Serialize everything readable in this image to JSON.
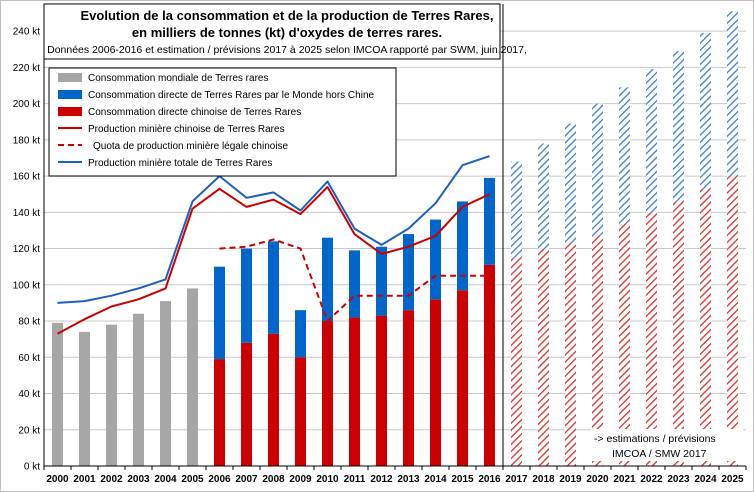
{
  "chart_data": {
    "type": "bar",
    "title_lines": [
      "Evolution de la consommation et de la production de Terres Rares,",
      "en milliers de tonnes (kt) d'oxydes de terres rares."
    ],
    "subtitle": "Données 2006-2016 et estimation / prévisions 2017 à 2025 selon IMCOA rapporté par SWM, juin 2017,",
    "ylim": [
      0,
      250
    ],
    "y_ticks": [
      "0 kt",
      "20 kt",
      "40 kt",
      "60 kt",
      "80 kt",
      "100 kt",
      "120 kt",
      "140 kt",
      "160 kt",
      "180 kt",
      "200 kt",
      "220 kt",
      "240 kt"
    ],
    "categories": [
      "2000",
      "2001",
      "2002",
      "2003",
      "2004",
      "2005",
      "2006",
      "2007",
      "2008",
      "2009",
      "2010",
      "2011",
      "2012",
      "2013",
      "2014",
      "2015",
      "2016",
      "2017",
      "2018",
      "2019",
      "2020",
      "2021",
      "2022",
      "2023",
      "2024",
      "2025"
    ],
    "forecast_from": "2017",
    "grid": true,
    "legend_position": "top-left",
    "series": [
      {
        "name": "Consommation mondiale de Terres rares",
        "kind": "bar",
        "color": "#a6a6a6",
        "values": [
          79,
          74,
          78,
          84,
          91,
          98,
          null,
          null,
          null,
          null,
          null,
          null,
          null,
          null,
          null,
          null,
          null,
          null,
          null,
          null,
          null,
          null,
          null,
          null,
          null,
          null
        ]
      },
      {
        "name": "Consommation directe chinoise de Terres Rares",
        "kind": "bar-stack-bottom",
        "color": "#cc0000",
        "values": [
          null,
          null,
          null,
          null,
          null,
          null,
          59,
          68,
          73,
          60,
          80,
          82,
          83,
          86,
          92,
          97,
          111,
          115,
          120,
          123,
          127,
          134,
          140,
          146,
          153,
          160
        ]
      },
      {
        "name": "Consommation directe de Terres Rares par le Monde hors Chine",
        "kind": "bar-stack-top",
        "color": "#0066cc",
        "values": [
          null,
          null,
          null,
          null,
          null,
          null,
          51,
          52,
          51,
          26,
          46,
          37,
          38,
          42,
          44,
          49,
          48,
          53,
          58,
          66,
          73,
          75,
          79,
          83,
          86,
          91
        ]
      },
      {
        "name": "Production minière chinoise de Terres Rares",
        "kind": "line",
        "color": "#cc0000",
        "values": [
          73,
          81,
          88,
          92,
          98,
          142,
          153,
          143,
          147,
          139,
          154,
          128,
          117,
          121,
          127,
          143,
          150,
          null,
          null,
          null,
          null,
          null,
          null,
          null,
          null,
          null
        ]
      },
      {
        "name": "Quota de production minière légale chinoise",
        "kind": "dashed-line",
        "color": "#cc0000",
        "values": [
          null,
          null,
          null,
          null,
          null,
          null,
          120,
          121,
          125,
          120,
          80,
          94,
          94,
          94,
          105,
          105,
          105,
          null,
          null,
          null,
          null,
          null,
          null,
          null,
          null,
          null
        ]
      },
      {
        "name": "Production minière totale de Terres Rares",
        "kind": "line",
        "color": "#1f5fc0",
        "values": [
          90,
          91,
          94,
          98,
          103,
          146,
          160,
          148,
          151,
          141,
          157,
          131,
          122,
          131,
          145,
          166,
          171,
          null,
          null,
          null,
          null,
          null,
          null,
          null,
          null,
          null
        ]
      }
    ],
    "annotation_lines": [
      "-> estimations / prévisions",
      "IMCOA / SMW 2017"
    ]
  }
}
